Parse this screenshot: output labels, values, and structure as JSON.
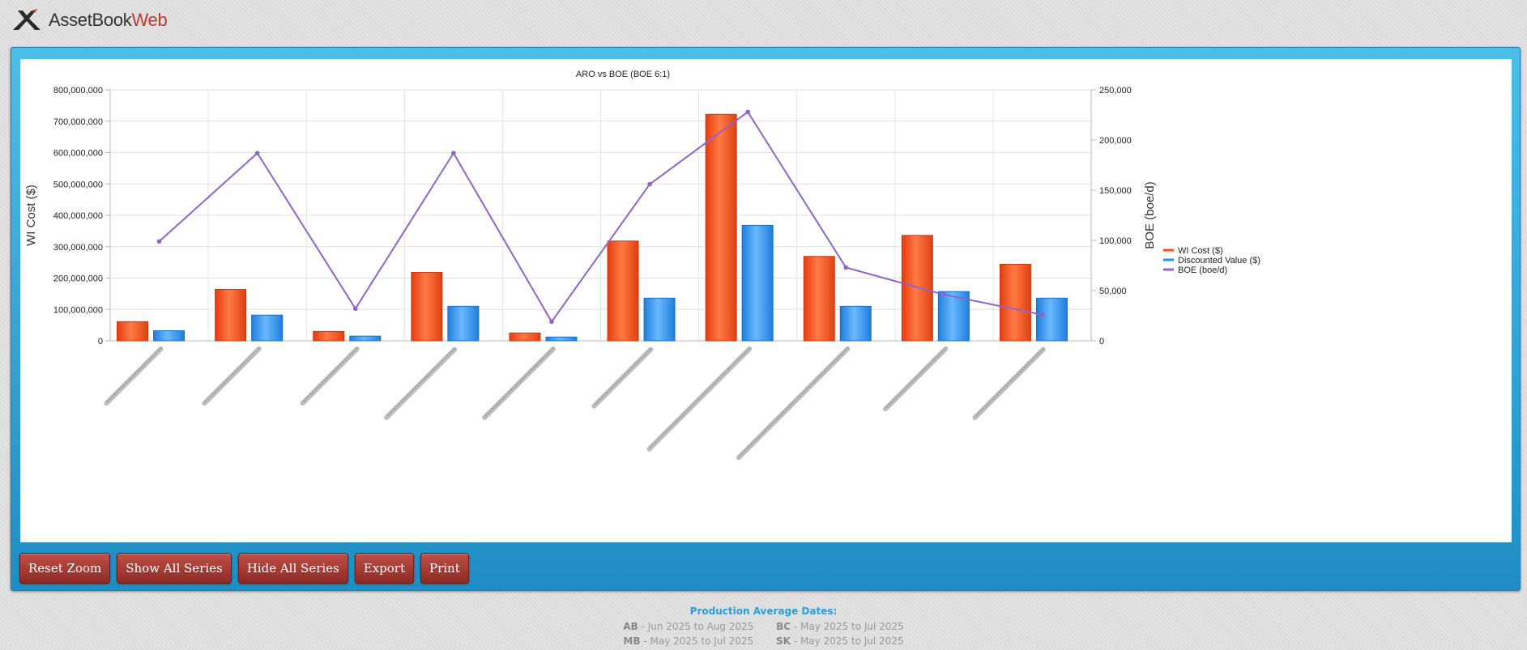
{
  "app": {
    "logo_primary": "AssetBook",
    "logo_accent": "Web"
  },
  "chart_data": {
    "type": "bar",
    "title": "ARO vs BOE (BOE 6:1)",
    "ylabel": "WI Cost ($)",
    "y2label": "BOE (boe/d)",
    "ylim": [
      0,
      800000000
    ],
    "y2lim": [
      0,
      250000
    ],
    "yticks": [
      "0",
      "100,000,000",
      "200,000,000",
      "300,000,000",
      "400,000,000",
      "500,000,000",
      "600,000,000",
      "700,000,000",
      "800,000,000"
    ],
    "y2ticks": [
      "0",
      "50,000",
      "100,000",
      "150,000",
      "200,000",
      "250,000"
    ],
    "category_count": 10,
    "categories_note": "category labels obscured",
    "legend_position": "right",
    "grid": true,
    "series": [
      {
        "name": "WI Cost ($)",
        "type": "column",
        "axis": "left",
        "color": "#ff4e1a",
        "values": [
          61000000,
          164000000,
          30000000,
          218000000,
          25000000,
          318000000,
          722000000,
          269000000,
          336000000,
          244000000
        ]
      },
      {
        "name": "Discounted Value ($)",
        "type": "column",
        "axis": "left",
        "color": "#2f8fef",
        "values": [
          32000000,
          82000000,
          15000000,
          110000000,
          12000000,
          136000000,
          368000000,
          110000000,
          157000000,
          136000000
        ]
      },
      {
        "name": "BOE (boe/d)",
        "type": "line",
        "axis": "right",
        "color": "#9164cc",
        "values": [
          99000,
          187000,
          32000,
          187000,
          19000,
          156000,
          228000,
          73000,
          46000,
          26000
        ]
      }
    ]
  },
  "toolbar": {
    "reset_zoom": "Reset Zoom",
    "show_all": "Show All Series",
    "hide_all": "Hide All Series",
    "export": "Export",
    "print": "Print"
  },
  "footer": {
    "title": "Production Average Dates:",
    "rows": [
      [
        {
          "prov": "AB",
          "range": "Jun 2025 to Aug 2025"
        },
        {
          "prov": "BC",
          "range": "May 2025 to Jul 2025"
        }
      ],
      [
        {
          "prov": "MB",
          "range": "May 2025 to Jul 2025"
        },
        {
          "prov": "SK",
          "range": "May 2025 to Jul 2025"
        }
      ]
    ]
  }
}
